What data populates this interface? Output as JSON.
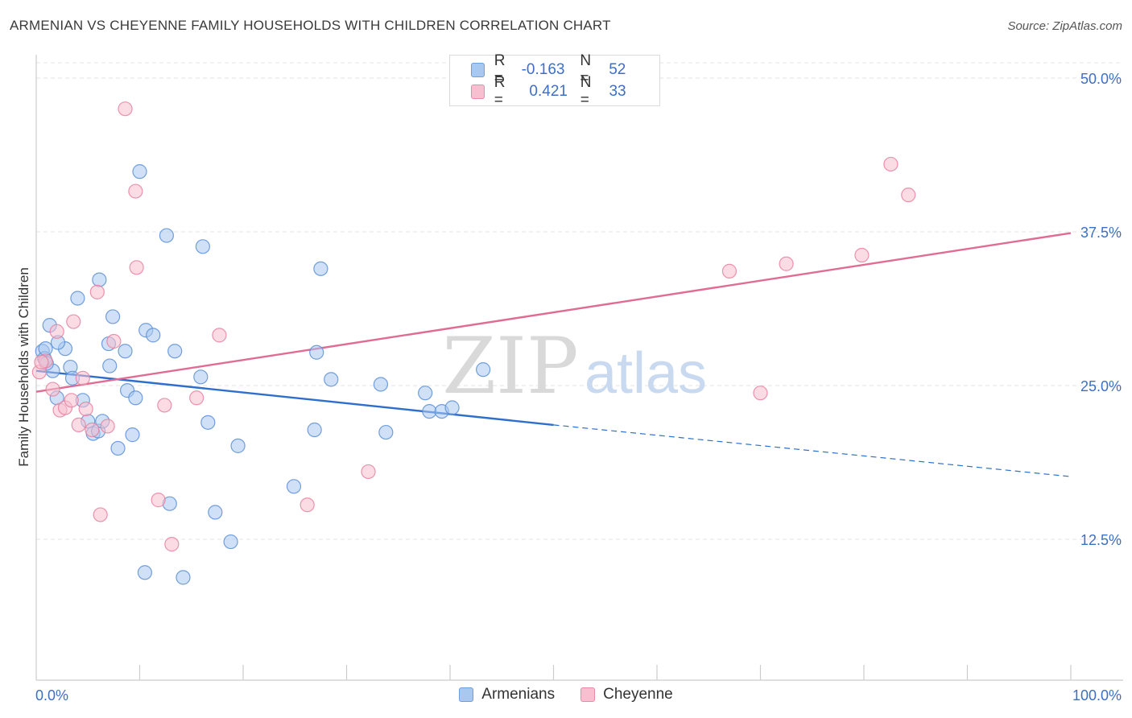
{
  "title": "ARMENIAN VS CHEYENNE FAMILY HOUSEHOLDS WITH CHILDREN CORRELATION CHART",
  "source": "Source: ZipAtlas.com",
  "watermark": {
    "zip": "ZIP",
    "atlas": "atlas"
  },
  "legend": {
    "r_label": "R =",
    "n_label": "N =",
    "rows": [
      {
        "r": "-0.163",
        "n": "52",
        "color": "#a9c8f0",
        "stroke": "#6f9fd8"
      },
      {
        "r": "0.421",
        "n": "33",
        "color": "#f7bfd0",
        "stroke": "#e98aa8"
      }
    ]
  },
  "bottom_legend": [
    "Armenians",
    "Cheyenne"
  ],
  "colors": {
    "armenians_fill": "#a9c8f0",
    "armenians_stroke": "#5b8fd6",
    "armenians_line": "#2f6fcc",
    "cheyenne_fill": "#f7bfd0",
    "cheyenne_stroke": "#e7819f",
    "cheyenne_line": "#e06b93",
    "tick_label": "#3d6fc4"
  },
  "chart_data": {
    "type": "scatter",
    "title": "ARMENIAN VS CHEYENNE FAMILY HOUSEHOLDS WITH CHILDREN CORRELATION CHART",
    "xlabel": "",
    "ylabel": "Family Households with Children",
    "xlim": [
      0,
      100
    ],
    "ylim": [
      0,
      52
    ],
    "x_tick_labels": [
      "0.0%",
      "100.0%"
    ],
    "y_ticks": [
      12.5,
      25.0,
      37.5,
      50.0
    ],
    "y_tick_labels": [
      "12.5%",
      "25.0%",
      "37.5%",
      "50.0%"
    ],
    "grid": true,
    "legend_placement": "top-center",
    "series": [
      {
        "name": "Armenians",
        "r": -0.163,
        "n": 52,
        "points": [
          [
            0.6,
            27.8
          ],
          [
            0.8,
            27.2
          ],
          [
            0.9,
            28.0
          ],
          [
            1.3,
            29.9
          ],
          [
            1.6,
            26.2
          ],
          [
            2.0,
            24.0
          ],
          [
            2.8,
            28.0
          ],
          [
            2.1,
            28.5
          ],
          [
            3.3,
            26.5
          ],
          [
            4.0,
            32.1
          ],
          [
            3.5,
            25.6
          ],
          [
            4.5,
            23.8
          ],
          [
            5.0,
            22.1
          ],
          [
            5.5,
            21.1
          ],
          [
            6.0,
            21.3
          ],
          [
            6.4,
            22.1
          ],
          [
            6.1,
            33.6
          ],
          [
            7.0,
            28.4
          ],
          [
            7.1,
            26.6
          ],
          [
            7.4,
            30.6
          ],
          [
            7.9,
            19.9
          ],
          [
            8.6,
            27.8
          ],
          [
            8.8,
            24.6
          ],
          [
            9.3,
            21.0
          ],
          [
            9.6,
            24.0
          ],
          [
            10.0,
            42.4
          ],
          [
            10.5,
            9.8
          ],
          [
            10.6,
            29.5
          ],
          [
            11.3,
            29.1
          ],
          [
            12.6,
            37.2
          ],
          [
            12.9,
            15.4
          ],
          [
            13.4,
            27.8
          ],
          [
            14.2,
            9.4
          ],
          [
            15.9,
            25.7
          ],
          [
            16.1,
            36.3
          ],
          [
            16.6,
            22.0
          ],
          [
            17.3,
            14.7
          ],
          [
            18.8,
            12.3
          ],
          [
            19.5,
            20.1
          ],
          [
            24.9,
            16.8
          ],
          [
            26.9,
            21.4
          ],
          [
            27.1,
            27.7
          ],
          [
            27.5,
            34.5
          ],
          [
            28.5,
            25.5
          ],
          [
            33.3,
            25.1
          ],
          [
            33.8,
            21.2
          ],
          [
            37.6,
            24.4
          ],
          [
            38.0,
            22.9
          ],
          [
            39.2,
            22.9
          ],
          [
            40.2,
            23.2
          ],
          [
            43.2,
            26.3
          ],
          [
            1.0,
            26.8
          ]
        ],
        "trend": {
          "x0": 0,
          "y0": 26.2,
          "x1": 50,
          "y1": 21.8,
          "dash_to_x": 100,
          "dash_to_y": 17.6
        }
      },
      {
        "name": "Cheyenne",
        "r": 0.421,
        "n": 33,
        "points": [
          [
            0.3,
            26.1
          ],
          [
            0.9,
            27.0
          ],
          [
            1.6,
            24.7
          ],
          [
            2.0,
            29.4
          ],
          [
            2.3,
            23.0
          ],
          [
            2.8,
            23.2
          ],
          [
            3.4,
            23.8
          ],
          [
            3.6,
            30.2
          ],
          [
            4.1,
            21.8
          ],
          [
            4.5,
            25.6
          ],
          [
            4.8,
            23.1
          ],
          [
            5.4,
            21.4
          ],
          [
            5.9,
            32.6
          ],
          [
            6.2,
            14.5
          ],
          [
            6.9,
            21.7
          ],
          [
            7.5,
            28.6
          ],
          [
            8.6,
            47.5
          ],
          [
            9.6,
            40.8
          ],
          [
            9.7,
            34.6
          ],
          [
            11.8,
            15.7
          ],
          [
            12.4,
            23.4
          ],
          [
            13.1,
            12.1
          ],
          [
            15.5,
            24.0
          ],
          [
            17.7,
            29.1
          ],
          [
            26.2,
            15.3
          ],
          [
            32.1,
            18.0
          ],
          [
            67.0,
            34.3
          ],
          [
            70.0,
            24.4
          ],
          [
            72.5,
            34.9
          ],
          [
            79.8,
            35.6
          ],
          [
            82.6,
            43.0
          ],
          [
            84.3,
            40.5
          ],
          [
            0.5,
            26.9
          ]
        ],
        "trend": {
          "x0": 0,
          "y0": 24.5,
          "x1": 100,
          "y1": 37.4
        }
      }
    ]
  }
}
